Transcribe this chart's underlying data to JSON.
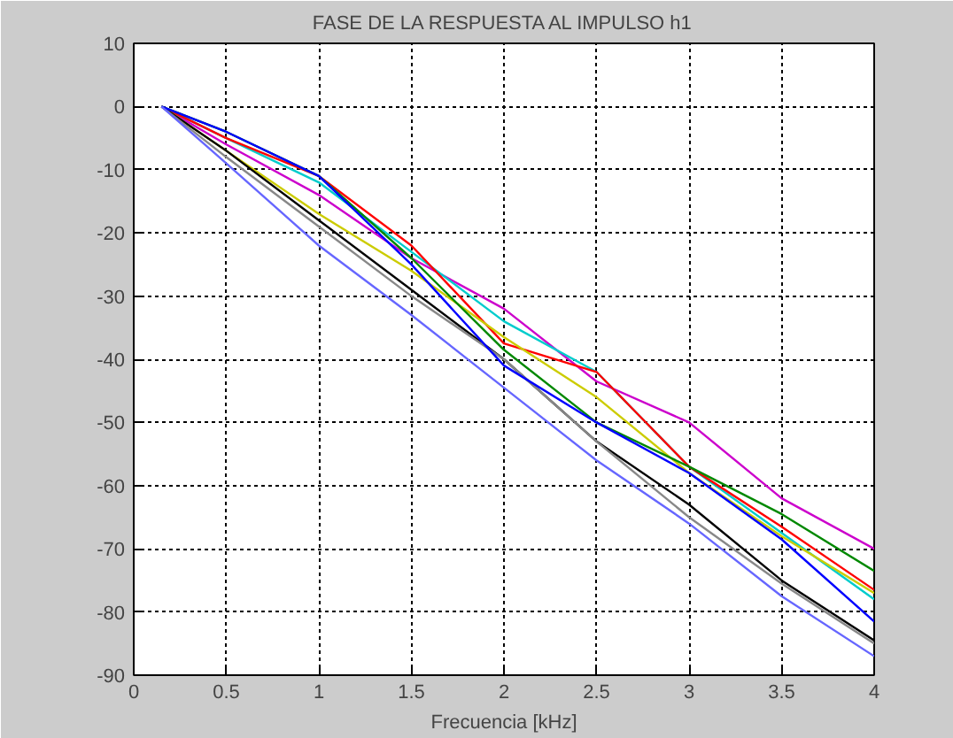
{
  "chart_data": {
    "type": "line",
    "title": "FASE DE LA RESPUESTA AL IMPULSO h1",
    "xlabel": "Frecuencia [kHz]",
    "x": [
      0.15,
      0.5,
      1,
      1.5,
      2,
      2.5,
      3,
      3.5,
      4
    ],
    "xlim": [
      0,
      4
    ],
    "xticks": [
      0,
      0.5,
      1,
      1.5,
      2,
      2.5,
      3,
      3.5,
      4
    ],
    "ylim": [
      -90,
      10
    ],
    "yticks": [
      -90,
      -80,
      -70,
      -60,
      -50,
      -40,
      -30,
      -20,
      -10,
      0,
      10
    ],
    "grid": true,
    "line_style": "solid",
    "series": [
      {
        "color": "#cc00cc",
        "values": [
          0,
          -6,
          -14,
          -24,
          -32,
          -43.5,
          -50,
          -62,
          -70
        ]
      },
      {
        "color": "#00cccc",
        "values": [
          0,
          -5,
          -12,
          -23,
          -34,
          -42,
          -57,
          -67.5,
          -78
        ]
      },
      {
        "color": "#ff0000",
        "values": [
          0,
          -5,
          -11,
          -22,
          -37.5,
          -42,
          -57,
          -66.5,
          -76.5
        ]
      },
      {
        "color": "#cccc00",
        "values": [
          0,
          -7,
          -17,
          -26,
          -36.5,
          -46,
          -58,
          -68,
          -77
        ]
      },
      {
        "color": "#008800",
        "values": [
          0,
          -4,
          -11,
          -24,
          -38.5,
          -50,
          -57,
          -64.5,
          -73.5
        ]
      },
      {
        "color": "#000000",
        "values": [
          0,
          -7,
          -18,
          -29,
          -40,
          -53,
          -63,
          -75,
          -84.5
        ]
      },
      {
        "color": "#888888",
        "values": [
          0,
          -8,
          -19,
          -30,
          -40,
          -53,
          -65,
          -75.5,
          -85
        ]
      },
      {
        "color": "#0000ff",
        "values": [
          0,
          -4,
          -11,
          -25,
          -41,
          -50,
          -58,
          -68.5,
          -81.5
        ]
      },
      {
        "color": "#6666ff",
        "values": [
          0,
          -9,
          -22,
          -33,
          -44.5,
          -56,
          -66,
          -77.5,
          -87
        ]
      }
    ]
  }
}
